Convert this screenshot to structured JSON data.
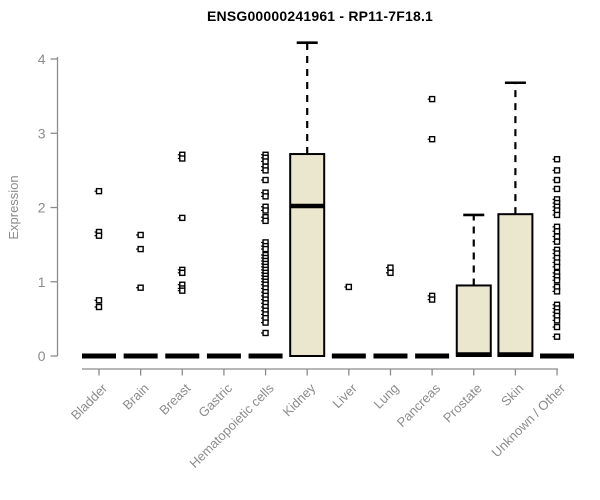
{
  "chart_data": {
    "type": "boxplot",
    "title": "ENSG00000241961 - RP11-7F18.1",
    "ylabel": "Expression",
    "ylim": [
      0,
      4
    ],
    "yticks": [
      0,
      1,
      2,
      3,
      4
    ],
    "grid": false,
    "legend": "none",
    "box_fill_color": "#EBE6CE",
    "box_stroke_color": "#000000",
    "axis_color": "#8C8C8C",
    "label_color": "#8C8C8C",
    "categories": [
      "Bladder",
      "Brain",
      "Breast",
      "Gastric",
      "Hematopoietic cells",
      "Kidney",
      "Liver",
      "Lung",
      "Pancreas",
      "Prostate",
      "Skin",
      "Unknown / Other"
    ],
    "boxes": [
      {
        "category": "Bladder",
        "whisker_low": 0,
        "q1": 0,
        "median": 0,
        "q3": 0,
        "whisker_high": 0,
        "outliers": [
          2.22,
          1.67,
          1.62,
          0.75,
          0.66
        ]
      },
      {
        "category": "Brain",
        "whisker_low": 0,
        "q1": 0,
        "median": 0,
        "q3": 0,
        "whisker_high": 0,
        "outliers": [
          1.63,
          1.44,
          0.92
        ]
      },
      {
        "category": "Breast",
        "whisker_low": 0,
        "q1": 0,
        "median": 0,
        "q3": 0,
        "whisker_high": 0,
        "outliers": [
          2.71,
          2.66,
          1.86,
          1.16,
          1.12,
          0.96,
          0.91,
          0.88
        ]
      },
      {
        "category": "Gastric",
        "whisker_low": 0,
        "q1": 0,
        "median": 0,
        "q3": 0,
        "whisker_high": 0,
        "outliers": []
      },
      {
        "category": "Hematopoietic cells",
        "whisker_low": 0,
        "q1": 0,
        "median": 0,
        "q3": 0,
        "whisker_high": 0,
        "outliers": [
          2.71,
          2.67,
          2.62,
          2.55,
          2.5,
          2.37,
          2.2,
          2.15,
          2.01,
          1.96,
          1.87,
          1.82,
          1.53,
          1.48,
          1.44,
          1.36,
          1.32,
          1.28,
          1.24,
          1.2,
          1.16,
          1.12,
          1.08,
          1.04,
          1.0,
          0.96,
          0.91,
          0.86,
          0.81,
          0.76,
          0.71,
          0.66,
          0.61,
          0.56,
          0.51,
          0.45,
          0.31
        ]
      },
      {
        "category": "Kidney",
        "whisker_low": 0,
        "q1": 0,
        "median": 2.02,
        "q3": 2.72,
        "whisker_high": 4.22,
        "outliers": []
      },
      {
        "category": "Liver",
        "whisker_low": 0,
        "q1": 0,
        "median": 0,
        "q3": 0,
        "whisker_high": 0,
        "outliers": [
          0.93
        ]
      },
      {
        "category": "Lung",
        "whisker_low": 0,
        "q1": 0,
        "median": 0,
        "q3": 0,
        "whisker_high": 0,
        "outliers": [
          1.19,
          1.12
        ]
      },
      {
        "category": "Pancreas",
        "whisker_low": 0,
        "q1": 0,
        "median": 0,
        "q3": 0,
        "whisker_high": 0,
        "outliers": [
          3.46,
          2.92,
          0.81,
          0.76
        ]
      },
      {
        "category": "Prostate",
        "whisker_low": 0,
        "q1": 0,
        "median": 0.02,
        "q3": 0.95,
        "whisker_high": 1.9,
        "outliers": []
      },
      {
        "category": "Skin",
        "whisker_low": 0,
        "q1": 0,
        "median": 0.02,
        "q3": 1.91,
        "whisker_high": 3.68,
        "outliers": []
      },
      {
        "category": "Unknown / Other",
        "whisker_low": 0,
        "q1": 0,
        "median": 0,
        "q3": 0,
        "whisker_high": 0,
        "outliers": [
          2.65,
          2.5,
          2.37,
          2.25,
          2.11,
          2.06,
          2.01,
          1.96,
          1.9,
          1.74,
          1.68,
          1.61,
          1.54,
          1.43,
          1.38,
          1.32,
          1.26,
          1.2,
          1.12,
          1.07,
          1.02,
          0.93,
          0.87,
          0.69,
          0.64,
          0.59,
          0.54,
          0.48,
          0.39,
          0.26
        ]
      }
    ]
  }
}
